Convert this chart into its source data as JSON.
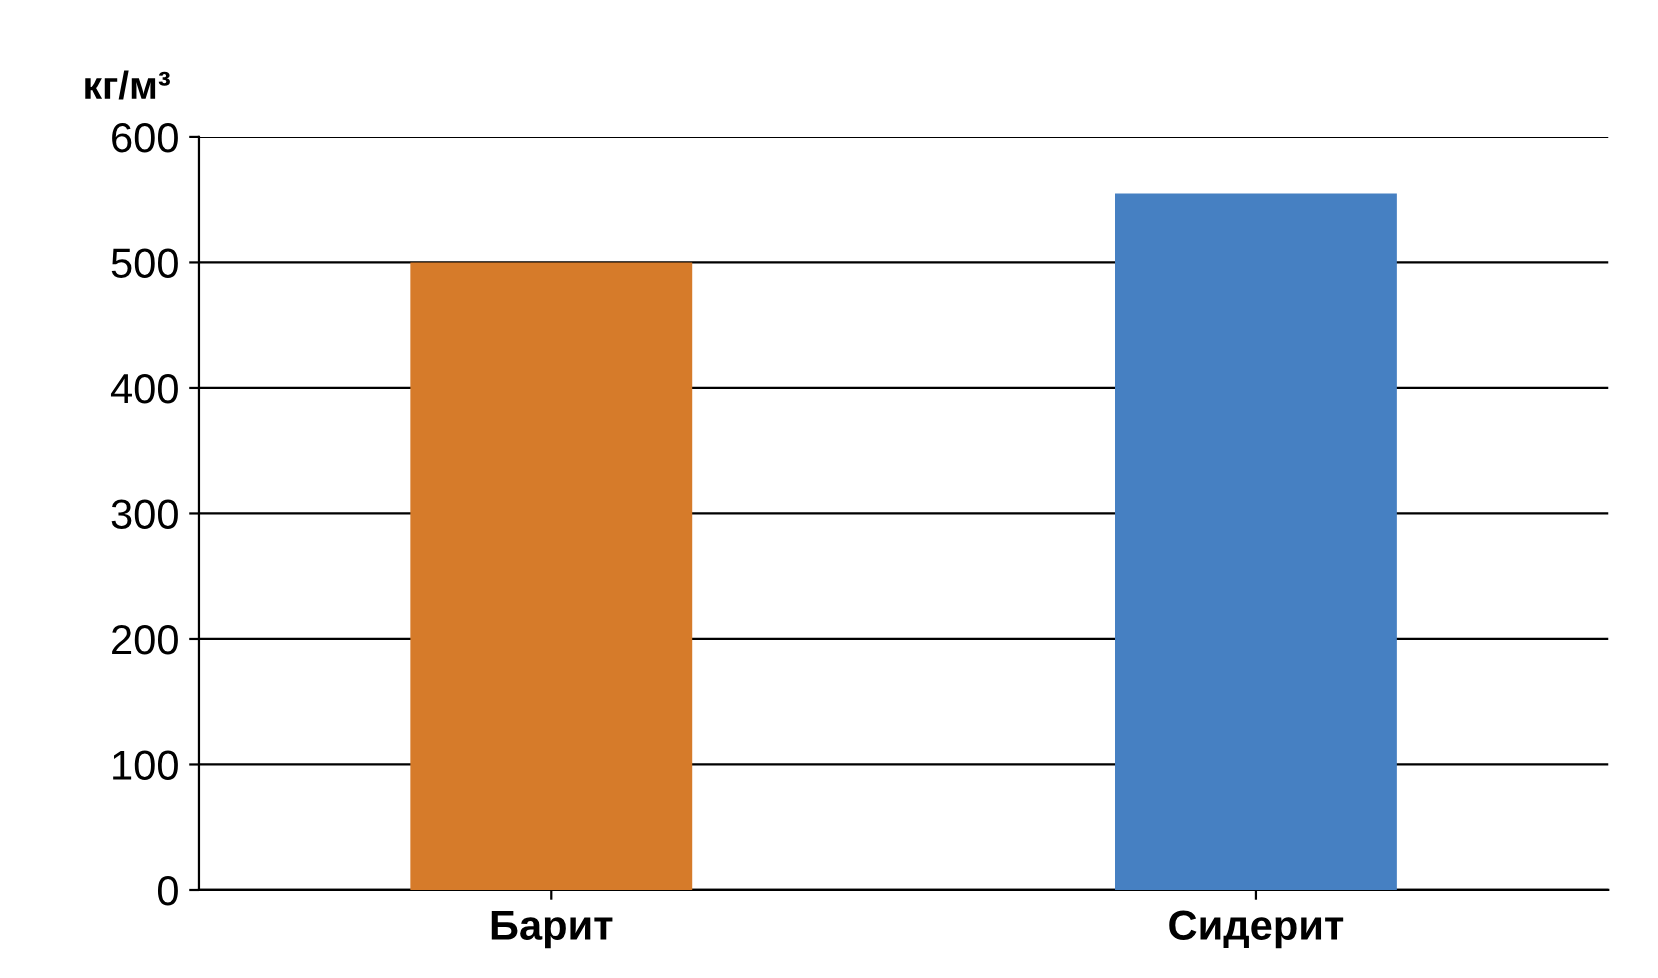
{
  "chart_data": {
    "type": "bar",
    "ylabel": "кг/м³",
    "categories": [
      "Барит",
      "Сидерит"
    ],
    "values": [
      500,
      555
    ],
    "colors": [
      "#d67b2a",
      "#4680c2"
    ],
    "ylim": [
      0,
      600
    ],
    "yticks": [
      0,
      100,
      200,
      300,
      400,
      500,
      600
    ],
    "grid": "y"
  }
}
